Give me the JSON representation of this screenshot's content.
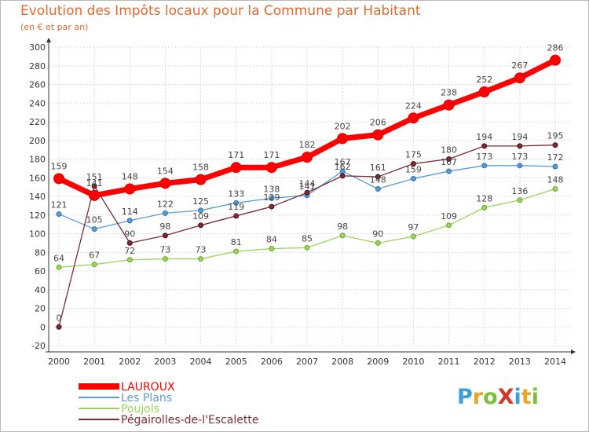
{
  "title": "Evolution des Impôts locaux pour la Commune par Habitant",
  "subtitle": "(en € et par an)",
  "logo": {
    "text": "ProXiti",
    "letters": [
      "P",
      "r",
      "o",
      "X",
      "i",
      "t",
      "i"
    ],
    "colors": [
      "#3aa0d8",
      "#e8a52a",
      "#7cbf3a",
      "#d8352a",
      "#3aa0d8",
      "#e8a52a",
      "#7cbf3a"
    ]
  },
  "chart_data": {
    "type": "line",
    "title": "Evolution des Impôts locaux pour la Commune par Habitant",
    "subtitle": "(en € et par an)",
    "x": [
      "2000",
      "2001",
      "2002",
      "2003",
      "2004",
      "2005",
      "2006",
      "2007",
      "2008",
      "2009",
      "2010",
      "2011",
      "2012",
      "2013",
      "2014"
    ],
    "ylim": [
      -20,
      300
    ],
    "yticks": [
      -20,
      0,
      20,
      40,
      60,
      80,
      100,
      120,
      140,
      160,
      180,
      200,
      220,
      240,
      260,
      280,
      300
    ],
    "grid": true,
    "legend_position": "bottom-left",
    "series": [
      {
        "name": "LAUROUX",
        "color": "#ff0000",
        "values": [
          159,
          141,
          148,
          154,
          158,
          171,
          171,
          182,
          202,
          206,
          224,
          238,
          252,
          267,
          286
        ]
      },
      {
        "name": "Les Plans",
        "color": "#5b9bd5",
        "values": [
          121,
          105,
          114,
          122,
          125,
          133,
          138,
          141,
          167,
          148,
          159,
          167,
          173,
          173,
          172
        ]
      },
      {
        "name": "Poujols",
        "color": "#9ad45a",
        "values": [
          64,
          67,
          72,
          73,
          73,
          81,
          84,
          85,
          98,
          90,
          97,
          109,
          128,
          136,
          148
        ]
      },
      {
        "name": "Pégairolles-de-l'Escalette",
        "color": "#7a2b33",
        "values": [
          0,
          151,
          90,
          98,
          109,
          119,
          129,
          144,
          162,
          161,
          175,
          180,
          194,
          194,
          195
        ]
      }
    ]
  }
}
